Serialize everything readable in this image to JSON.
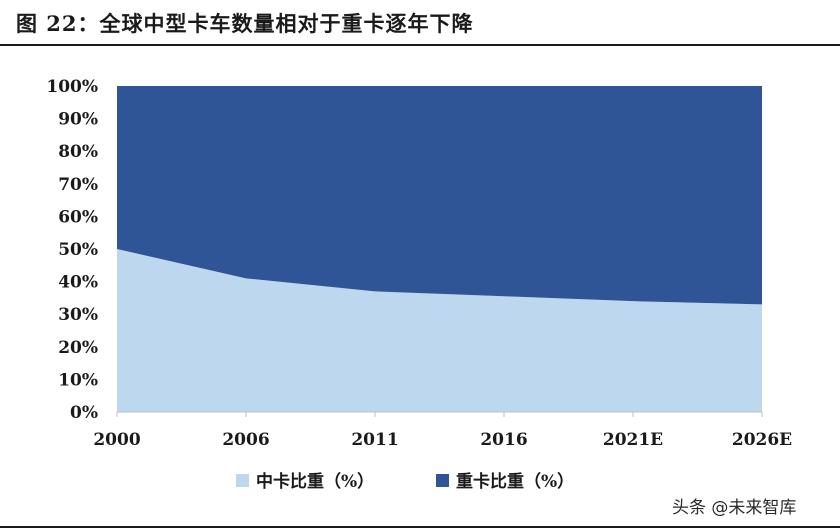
{
  "figure": {
    "title": "图 22：全球中型卡车数量相对于重卡逐年下降",
    "watermark": "头条 @未来智库"
  },
  "chart_data": {
    "type": "area",
    "stacked": true,
    "categories": [
      "2000",
      "2006",
      "2011",
      "2016",
      "2021E",
      "2026E"
    ],
    "series": [
      {
        "name": "中卡比重（%）",
        "values": [
          50,
          41,
          37,
          35.5,
          34,
          33
        ],
        "color": "#bdd7ee"
      },
      {
        "name": "重卡比重（%）",
        "values": [
          50,
          59,
          63,
          64.5,
          66,
          67
        ],
        "color": "#2f5597"
      }
    ],
    "ylim": [
      0,
      100
    ],
    "y_ticks": [
      "0%",
      "10%",
      "20%",
      "30%",
      "40%",
      "50%",
      "60%",
      "70%",
      "80%",
      "90%",
      "100%"
    ],
    "grid": false,
    "legend_position": "bottom"
  }
}
